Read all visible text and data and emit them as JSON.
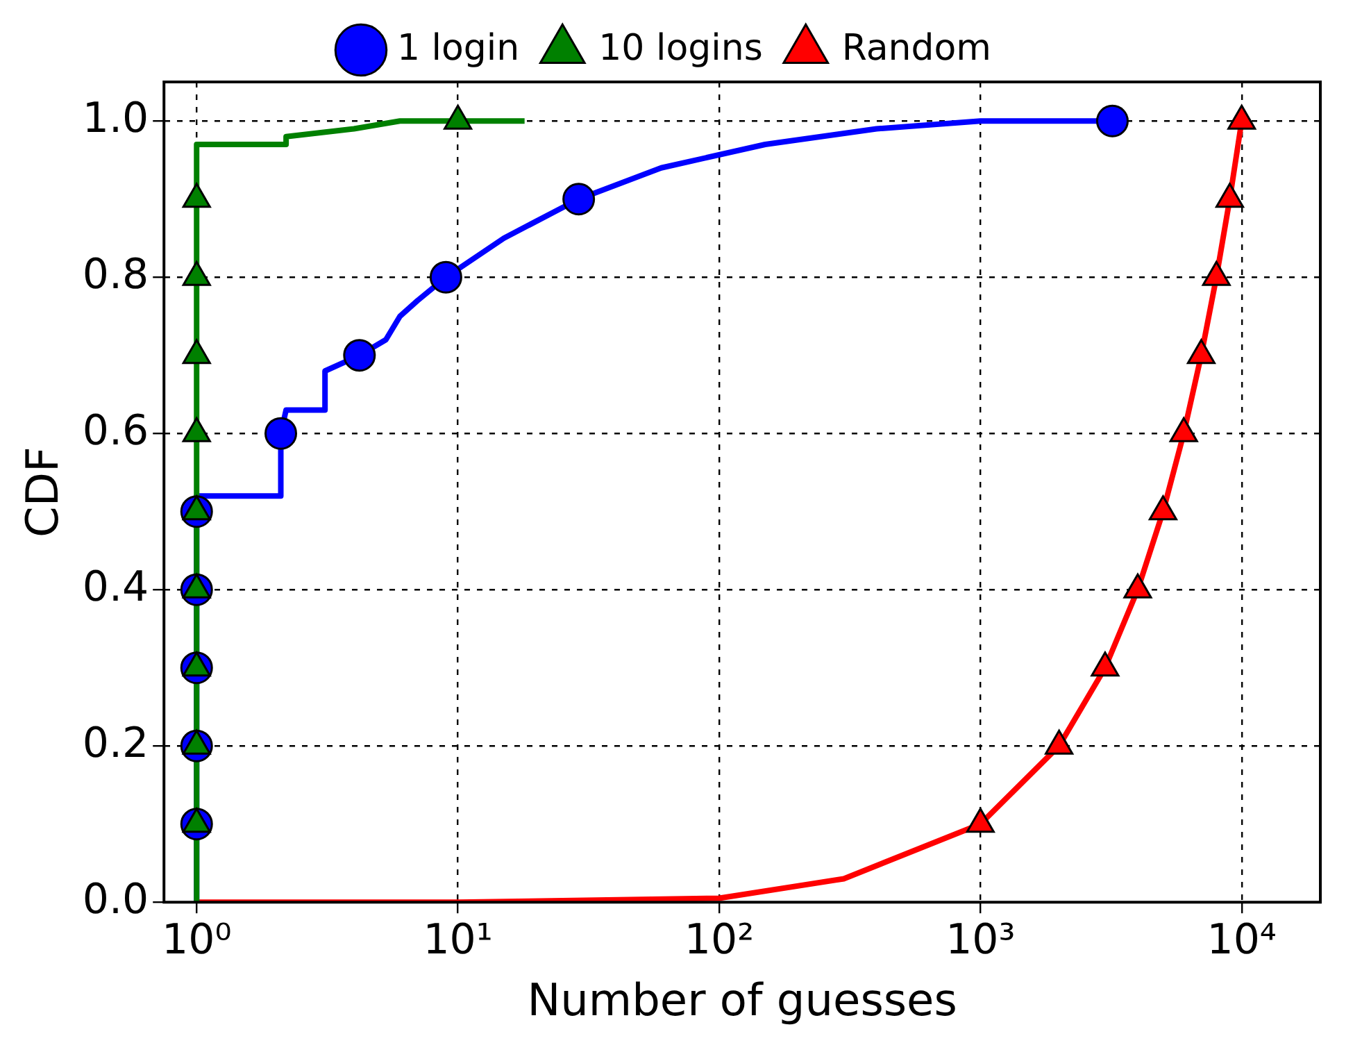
{
  "chart_data": {
    "type": "line",
    "xlabel": "Number of guesses",
    "ylabel": "CDF",
    "log": "x",
    "grid": true,
    "legend": "top",
    "xlim": [
      0.75,
      20000
    ],
    "xticks": [
      {
        "value": 1,
        "label": "10⁰"
      },
      {
        "value": 10,
        "label": "10¹"
      },
      {
        "value": 100,
        "label": "10²"
      },
      {
        "value": 1000,
        "label": "10³"
      },
      {
        "value": 10000,
        "label": "10⁴"
      }
    ],
    "ylim": [
      0,
      1.05
    ],
    "yticks": [
      {
        "value": 0,
        "label": "0.0"
      },
      {
        "value": 0.2,
        "label": "0.2"
      },
      {
        "value": 0.4,
        "label": "0.4"
      },
      {
        "value": 0.6,
        "label": "0.6"
      },
      {
        "value": 0.8,
        "label": "0.8"
      },
      {
        "value": 1,
        "label": "1.0"
      }
    ],
    "series": [
      {
        "type": "line",
        "marker": "none",
        "color": "#ff0000",
        "x": [
          1,
          10,
          100,
          300,
          1000,
          2000,
          3000,
          4000,
          5000,
          6000,
          7000,
          8000,
          9000,
          10000
        ],
        "values": [
          0,
          0,
          0.005,
          0.03,
          0.1,
          0.2,
          0.3,
          0.4,
          0.5,
          0.6,
          0.7,
          0.8,
          0.9,
          1.0
        ]
      },
      {
        "type": "line",
        "marker": "none",
        "color": "#0000ff",
        "x": [
          1,
          1,
          2.1,
          2.1,
          2.2,
          3.1,
          3.1,
          4.2,
          5.3,
          6,
          7,
          9,
          15,
          29,
          60,
          150,
          400,
          1000,
          3200
        ],
        "values": [
          0,
          0.52,
          0.52,
          0.6,
          0.63,
          0.63,
          0.68,
          0.7,
          0.72,
          0.75,
          0.77,
          0.8,
          0.85,
          0.9,
          0.94,
          0.97,
          0.99,
          1.0,
          1.0
        ]
      },
      {
        "type": "line",
        "marker": "none",
        "color": "#008000",
        "x": [
          1,
          1,
          2.2,
          2.2,
          4,
          6,
          18
        ],
        "values": [
          0,
          0.97,
          0.97,
          0.98,
          0.99,
          1.0,
          1.0
        ]
      },
      {
        "type": "scatter",
        "name": "1 login",
        "marker": "circle",
        "color": "#0000ff",
        "x": [
          1,
          1,
          1,
          1,
          1,
          2.1,
          4.2,
          9,
          29,
          3200
        ],
        "values": [
          0.1,
          0.2,
          0.3,
          0.4,
          0.5,
          0.6,
          0.7,
          0.8,
          0.9,
          1.0
        ]
      },
      {
        "type": "scatter",
        "name": "10 logins",
        "marker": "triangle",
        "color": "#008000",
        "x": [
          1,
          1,
          1,
          1,
          1,
          1,
          1,
          1,
          1,
          10
        ],
        "values": [
          0.1,
          0.2,
          0.3,
          0.4,
          0.5,
          0.6,
          0.7,
          0.8,
          0.9,
          1.0
        ]
      },
      {
        "type": "scatter",
        "name": "Random",
        "marker": "triangle",
        "color": "#ff0000",
        "x": [
          1000,
          2000,
          3000,
          4000,
          5000,
          6000,
          7000,
          8000,
          9000,
          10000
        ],
        "values": [
          0.1,
          0.2,
          0.3,
          0.4,
          0.5,
          0.6,
          0.7,
          0.8,
          0.9,
          1.0
        ]
      }
    ]
  }
}
